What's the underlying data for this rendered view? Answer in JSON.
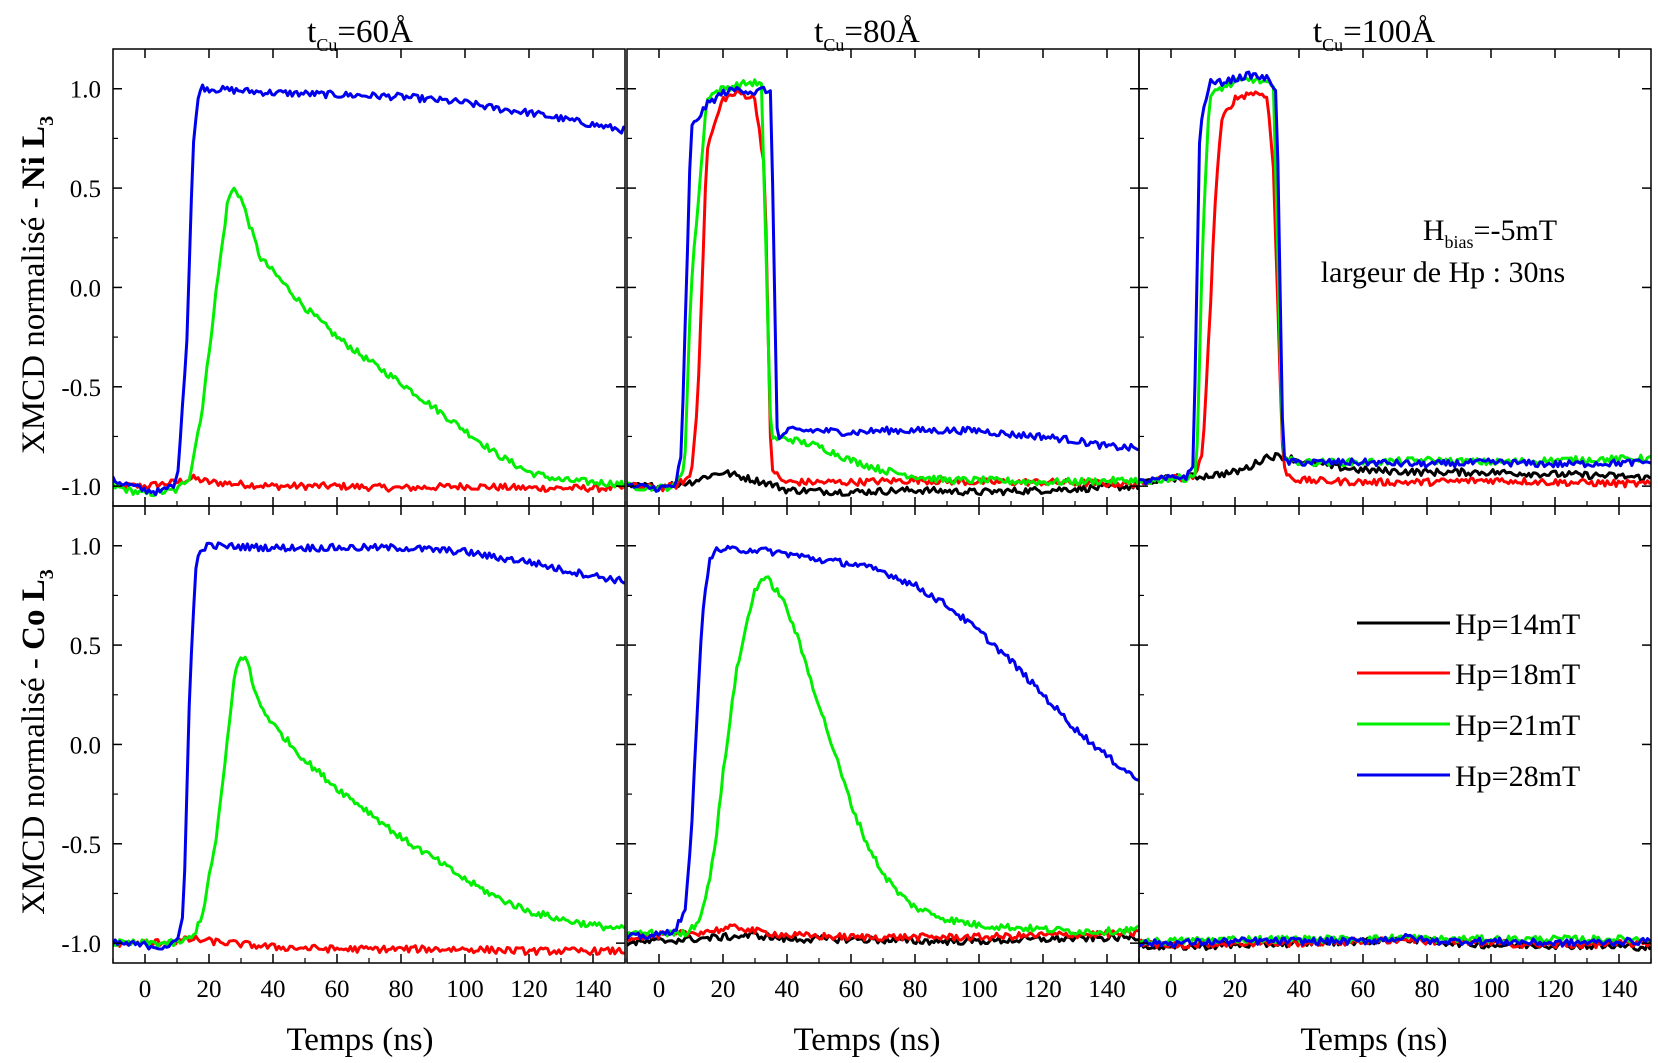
{
  "figure": {
    "column_titles": [
      {
        "main": "t",
        "sub": "Cu",
        "rest": "=60Å"
      },
      {
        "main": "t",
        "sub": "Cu",
        "rest": "=80Å"
      },
      {
        "main": "t",
        "sub": "Cu",
        "rest": "=100Å"
      }
    ],
    "row_ylabels": [
      {
        "prefix": "XMCD normalisé - ",
        "bold": "Ni L",
        "sub": "3"
      },
      {
        "prefix": "XMCD normalisé - ",
        "bold": "Co L",
        "sub": "3"
      }
    ],
    "xlabel": "Temps (ns)",
    "annotation": {
      "line1_main": "H",
      "line1_sub": "bias",
      "line1_rest": "=-5mT",
      "line2": "largeur de Hp : 30ns"
    },
    "legend": [
      {
        "label": "Hp=14mT",
        "color": "#000000"
      },
      {
        "label": "Hp=18mT",
        "color": "#ff0000"
      },
      {
        "label": "Hp=21mT",
        "color": "#00ee00"
      },
      {
        "label": "Hp=28mT",
        "color": "#0000ee"
      }
    ],
    "x_ticks": [
      "0",
      "20",
      "40",
      "60",
      "80",
      "100",
      "120",
      "140"
    ],
    "y_ticks": [
      "1.0",
      "0.5",
      "0.0",
      "-0.5",
      "-1.0"
    ]
  },
  "chart_data": [
    {
      "type": "line",
      "panel": "row1-col1",
      "xlim": [
        -10,
        150
      ],
      "ylim": [
        -1.1,
        1.2
      ],
      "series": [
        {
          "name": "Hp=18mT",
          "color": "#ff0000",
          "x": [
            -10,
            0,
            10,
            15,
            20,
            40,
            60,
            80,
            100,
            120,
            150
          ],
          "y": [
            -1.0,
            -1.0,
            -0.98,
            -0.96,
            -0.98,
            -1.0,
            -1.0,
            -1.01,
            -1.0,
            -1.01,
            -1.01
          ]
        },
        {
          "name": "Hp=21mT",
          "color": "#00ee00",
          "x": [
            -10,
            0,
            10,
            14,
            18,
            22,
            26,
            28,
            30,
            33,
            36,
            40,
            50,
            60,
            70,
            80,
            90,
            100,
            110,
            120,
            130,
            140,
            150
          ],
          "y": [
            -1.0,
            -1.04,
            -1.02,
            -0.95,
            -0.6,
            -0.05,
            0.45,
            0.5,
            0.45,
            0.3,
            0.15,
            0.08,
            -0.1,
            -0.25,
            -0.37,
            -0.48,
            -0.6,
            -0.72,
            -0.84,
            -0.93,
            -0.97,
            -0.98,
            -0.99
          ]
        },
        {
          "name": "Hp=28mT",
          "color": "#0000ee",
          "x": [
            -10,
            0,
            5,
            10,
            13,
            15,
            17,
            20,
            40,
            60,
            80,
            100,
            110,
            120,
            130,
            140,
            150
          ],
          "y": [
            -0.97,
            -1.02,
            -1.03,
            -0.98,
            -0.3,
            0.7,
            1.01,
            1.0,
            0.98,
            0.97,
            0.96,
            0.93,
            0.9,
            0.88,
            0.85,
            0.82,
            0.79
          ]
        }
      ]
    },
    {
      "type": "line",
      "panel": "row1-col2",
      "xlim": [
        -10,
        150
      ],
      "ylim": [
        -1.1,
        1.2
      ],
      "series": [
        {
          "name": "Hp=14mT",
          "color": "#000000",
          "x": [
            -10,
            0,
            10,
            15,
            20,
            25,
            30,
            35,
            40,
            60,
            80,
            100,
            120,
            150
          ],
          "y": [
            -1.0,
            -1.0,
            -0.98,
            -0.95,
            -0.93,
            -0.95,
            -0.97,
            -0.99,
            -1.02,
            -1.03,
            -1.02,
            -1.03,
            -1.02,
            -1.0
          ]
        },
        {
          "name": "Hp=18mT",
          "color": "#ff0000",
          "x": [
            -10,
            0,
            5,
            10,
            12,
            15,
            20,
            25,
            30,
            33,
            35,
            38,
            40,
            60,
            80,
            100,
            120,
            150
          ],
          "y": [
            -1.0,
            -1.01,
            -1.0,
            -0.95,
            -0.6,
            0.7,
            0.95,
            0.98,
            0.95,
            0.6,
            -0.9,
            -0.97,
            -0.98,
            -0.98,
            -0.97,
            -0.98,
            -0.98,
            -0.99
          ]
        },
        {
          "name": "Hp=21mT",
          "color": "#00ee00",
          "x": [
            -10,
            0,
            5,
            8,
            10,
            15,
            20,
            25,
            28,
            30,
            32,
            35,
            38,
            40,
            50,
            60,
            70,
            80,
            90,
            100,
            120,
            150
          ],
          "y": [
            -1.0,
            -1.01,
            -1.0,
            -0.9,
            0.0,
            0.96,
            1.0,
            1.02,
            1.03,
            1.03,
            1.02,
            -0.76,
            -0.76,
            -0.76,
            -0.8,
            -0.87,
            -0.92,
            -0.95,
            -0.97,
            -0.97,
            -0.98,
            -0.97
          ]
        },
        {
          "name": "Hp=28mT",
          "color": "#0000ee",
          "x": [
            -10,
            0,
            5,
            7,
            10,
            15,
            20,
            25,
            30,
            33,
            35,
            37,
            40,
            50,
            60,
            70,
            80,
            90,
            100,
            110,
            120,
            130,
            140,
            150
          ],
          "y": [
            -1.0,
            -1.01,
            -1.0,
            -0.85,
            0.8,
            0.92,
            0.98,
            1.0,
            0.98,
            1.0,
            0.97,
            -0.78,
            -0.72,
            -0.72,
            -0.73,
            -0.72,
            -0.72,
            -0.72,
            -0.72,
            -0.74,
            -0.75,
            -0.77,
            -0.8,
            -0.81
          ]
        }
      ]
    },
    {
      "type": "line",
      "panel": "row1-col3",
      "xlim": [
        -10,
        150
      ],
      "ylim": [
        -1.1,
        1.2
      ],
      "series": [
        {
          "name": "Hp=14mT",
          "color": "#000000",
          "x": [
            -10,
            0,
            10,
            20,
            25,
            30,
            35,
            40,
            50,
            60,
            80,
            100,
            120,
            140,
            150
          ],
          "y": [
            -0.98,
            -0.96,
            -0.95,
            -0.93,
            -0.9,
            -0.85,
            -0.85,
            -0.87,
            -0.9,
            -0.92,
            -0.93,
            -0.93,
            -0.94,
            -0.95,
            -0.96
          ]
        },
        {
          "name": "Hp=18mT",
          "color": "#ff0000",
          "x": [
            -10,
            0,
            5,
            8,
            10,
            12,
            14,
            16,
            20,
            25,
            30,
            32,
            35,
            37,
            40,
            60,
            80,
            100,
            120,
            150
          ],
          "y": [
            -0.98,
            -0.96,
            -0.96,
            -0.95,
            -0.8,
            -0.2,
            0.5,
            0.85,
            0.95,
            0.98,
            0.97,
            0.6,
            -0.9,
            -0.95,
            -0.97,
            -0.98,
            -0.98,
            -0.97,
            -0.98,
            -0.99
          ]
        },
        {
          "name": "Hp=21mT",
          "color": "#00ee00",
          "x": [
            -10,
            0,
            5,
            8,
            10,
            12,
            15,
            20,
            25,
            30,
            32,
            35,
            37,
            40,
            60,
            80,
            100,
            120,
            150
          ],
          "y": [
            -0.98,
            -0.96,
            -0.96,
            -0.93,
            0.3,
            0.95,
            1.0,
            1.03,
            1.05,
            1.03,
            1.0,
            -0.85,
            -0.87,
            -0.88,
            -0.88,
            -0.87,
            -0.88,
            -0.87,
            -0.86
          ]
        },
        {
          "name": "Hp=28mT",
          "color": "#0000ee",
          "x": [
            -10,
            0,
            5,
            7,
            9,
            12,
            15,
            20,
            25,
            30,
            33,
            35,
            37,
            40,
            60,
            80,
            100,
            120,
            150
          ],
          "y": [
            -0.98,
            -0.96,
            -0.95,
            -0.9,
            0.8,
            1.03,
            1.03,
            1.05,
            1.07,
            1.05,
            1.0,
            -0.86,
            -0.88,
            -0.88,
            -0.88,
            -0.89,
            -0.88,
            -0.89,
            -0.88
          ]
        }
      ]
    },
    {
      "type": "line",
      "panel": "row2-col1",
      "xlim": [
        -10,
        150
      ],
      "ylim": [
        -1.1,
        1.2
      ],
      "series": [
        {
          "name": "Hp=18mT",
          "color": "#ff0000",
          "x": [
            -10,
            0,
            10,
            15,
            20,
            40,
            60,
            80,
            100,
            120,
            150
          ],
          "y": [
            -1.0,
            -1.0,
            -0.99,
            -0.98,
            -0.99,
            -1.02,
            -1.03,
            -1.03,
            -1.03,
            -1.04,
            -1.04
          ]
        },
        {
          "name": "Hp=21mT",
          "color": "#00ee00",
          "x": [
            -10,
            0,
            10,
            15,
            18,
            22,
            25,
            28,
            30,
            32,
            34,
            36,
            40,
            50,
            60,
            70,
            80,
            90,
            100,
            110,
            120,
            130,
            140,
            150
          ],
          "y": [
            -1.0,
            -1.0,
            -1.0,
            -0.97,
            -0.85,
            -0.5,
            -0.1,
            0.35,
            0.45,
            0.42,
            0.28,
            0.2,
            0.1,
            -0.08,
            -0.22,
            -0.34,
            -0.47,
            -0.57,
            -0.68,
            -0.77,
            -0.84,
            -0.88,
            -0.91,
            -0.93
          ]
        },
        {
          "name": "Hp=28mT",
          "color": "#0000ee",
          "x": [
            -10,
            0,
            5,
            10,
            12,
            14,
            16,
            18,
            20,
            40,
            60,
            80,
            100,
            110,
            120,
            130,
            140,
            150
          ],
          "y": [
            -1.0,
            -1.01,
            -1.02,
            -1.0,
            -0.85,
            0.3,
            0.92,
            0.99,
            1.0,
            0.99,
            0.99,
            0.99,
            0.97,
            0.94,
            0.92,
            0.88,
            0.85,
            0.82
          ]
        }
      ]
    },
    {
      "type": "line",
      "panel": "row2-col2",
      "xlim": [
        -10,
        150
      ],
      "ylim": [
        -1.1,
        1.2
      ],
      "series": [
        {
          "name": "Hp=14mT",
          "color": "#000000",
          "x": [
            -10,
            0,
            10,
            20,
            30,
            40,
            60,
            80,
            100,
            120,
            150
          ],
          "y": [
            -1.0,
            -0.99,
            -0.98,
            -0.97,
            -0.96,
            -0.98,
            -0.98,
            -0.99,
            -0.99,
            -0.98,
            -0.97
          ]
        },
        {
          "name": "Hp=18mT",
          "color": "#ff0000",
          "x": [
            -10,
            0,
            10,
            20,
            25,
            30,
            40,
            60,
            80,
            100,
            120,
            150
          ],
          "y": [
            -0.97,
            -0.96,
            -0.95,
            -0.93,
            -0.92,
            -0.94,
            -0.96,
            -0.97,
            -0.97,
            -0.97,
            -0.96,
            -0.95
          ]
        },
        {
          "name": "Hp=21mT",
          "color": "#00ee00",
          "x": [
            -10,
            0,
            8,
            12,
            15,
            18,
            20,
            24,
            28,
            30,
            32,
            34,
            38,
            42,
            46,
            50,
            55,
            60,
            65,
            70,
            75,
            80,
            90,
            100,
            110,
            120,
            130,
            140,
            150
          ],
          "y": [
            -0.95,
            -0.95,
            -0.95,
            -0.9,
            -0.75,
            -0.45,
            -0.15,
            0.35,
            0.65,
            0.78,
            0.83,
            0.83,
            0.75,
            0.6,
            0.4,
            0.2,
            -0.05,
            -0.3,
            -0.5,
            -0.65,
            -0.75,
            -0.82,
            -0.88,
            -0.91,
            -0.92,
            -0.93,
            -0.94,
            -0.94,
            -0.93
          ]
        },
        {
          "name": "Hp=28mT",
          "color": "#0000ee",
          "x": [
            -10,
            0,
            5,
            8,
            10,
            12,
            14,
            16,
            18,
            20,
            30,
            40,
            50,
            60,
            70,
            80,
            90,
            100,
            110,
            120,
            130,
            140,
            150
          ],
          "y": [
            -0.97,
            -0.96,
            -0.93,
            -0.85,
            -0.5,
            0.2,
            0.75,
            0.93,
            0.98,
            0.98,
            0.98,
            0.96,
            0.93,
            0.91,
            0.87,
            0.8,
            0.7,
            0.57,
            0.42,
            0.25,
            0.08,
            -0.06,
            -0.18
          ]
        }
      ]
    },
    {
      "type": "line",
      "panel": "row2-col3",
      "xlim": [
        -10,
        150
      ],
      "ylim": [
        -1.1,
        1.2
      ],
      "series": [
        {
          "name": "Hp=14mT",
          "color": "#000000",
          "x": [
            -10,
            0,
            20,
            40,
            60,
            75,
            80,
            100,
            120,
            150
          ],
          "y": [
            -1.01,
            -1.02,
            -1.01,
            -1.0,
            -0.99,
            -0.98,
            -0.99,
            -1.01,
            -1.01,
            -1.02
          ]
        },
        {
          "name": "Hp=18mT",
          "color": "#ff0000",
          "x": [
            -10,
            0,
            20,
            40,
            60,
            75,
            80,
            100,
            120,
            150
          ],
          "y": [
            -1.0,
            -1.01,
            -1.0,
            -1.0,
            -0.99,
            -0.98,
            -0.99,
            -1.0,
            -1.01,
            -1.0
          ]
        },
        {
          "name": "Hp=21mT",
          "color": "#00ee00",
          "x": [
            -10,
            0,
            20,
            40,
            60,
            75,
            80,
            100,
            120,
            150
          ],
          "y": [
            -0.99,
            -0.99,
            -0.98,
            -0.98,
            -0.98,
            -0.97,
            -0.98,
            -0.98,
            -0.98,
            -0.98
          ]
        },
        {
          "name": "Hp=28mT",
          "color": "#0000ee",
          "x": [
            -10,
            0,
            20,
            40,
            60,
            75,
            80,
            100,
            120,
            150
          ],
          "y": [
            -1.0,
            -1.0,
            -0.99,
            -0.99,
            -0.99,
            -0.97,
            -0.99,
            -0.99,
            -1.0,
            -0.99
          ]
        }
      ]
    }
  ]
}
